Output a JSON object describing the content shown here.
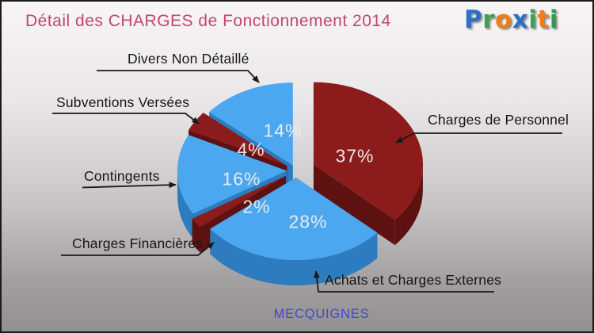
{
  "header": {
    "title": "Détail des CHARGES de Fonctionnement 2014",
    "title_color": "#c2466f",
    "logo": {
      "text": "Proxiti",
      "letters": [
        {
          "ch": "P",
          "color": "#2b6fc7"
        },
        {
          "ch": "r",
          "color": "#3fa054"
        },
        {
          "ch": "o",
          "color": "#f07e14"
        },
        {
          "ch": "x",
          "color": "#2b6fc7"
        },
        {
          "ch": "i",
          "color": "#3fa054"
        },
        {
          "ch": "t",
          "color": "#f07e14"
        },
        {
          "ch": "i",
          "color": "#2e9e4c"
        }
      ]
    }
  },
  "footer": {
    "municipality": "MECQUIGNES",
    "color": "#4646d9"
  },
  "chart_data": {
    "type": "pie",
    "style": "3d-exploded",
    "title": "Détail des CHARGES de Fonctionnement 2014",
    "legend_position": "callout-labels",
    "footer_label": "MECQUIGNES",
    "palette": {
      "blue": "#4ba7ef",
      "dark_red": "#8c1c1c"
    },
    "slices": [
      {
        "label": "Charges de Personnel",
        "value": 37,
        "pct_label": "37%",
        "color": "#8c1c1c",
        "side_color": "#5e1111"
      },
      {
        "label": "Achats et Charges Externes",
        "value": 28,
        "pct_label": "28%",
        "color": "#4ba7ef",
        "side_color": "#2e7cc0"
      },
      {
        "label": "Charges Financières",
        "value": 2,
        "pct_label": "2%",
        "color": "#8c1c1c",
        "side_color": "#5e1111"
      },
      {
        "label": "Contingents",
        "value": 16,
        "pct_label": "16%",
        "color": "#4ba7ef",
        "side_color": "#2e7cc0"
      },
      {
        "label": "Subventions Versées",
        "value": 4,
        "pct_label": "4%",
        "color": "#8c1c1c",
        "side_color": "#5e1111"
      },
      {
        "label": "Divers Non Détaillé",
        "value": 14,
        "pct_label": "14%",
        "color": "#4ba7ef",
        "side_color": "#2e7cc0"
      }
    ]
  }
}
